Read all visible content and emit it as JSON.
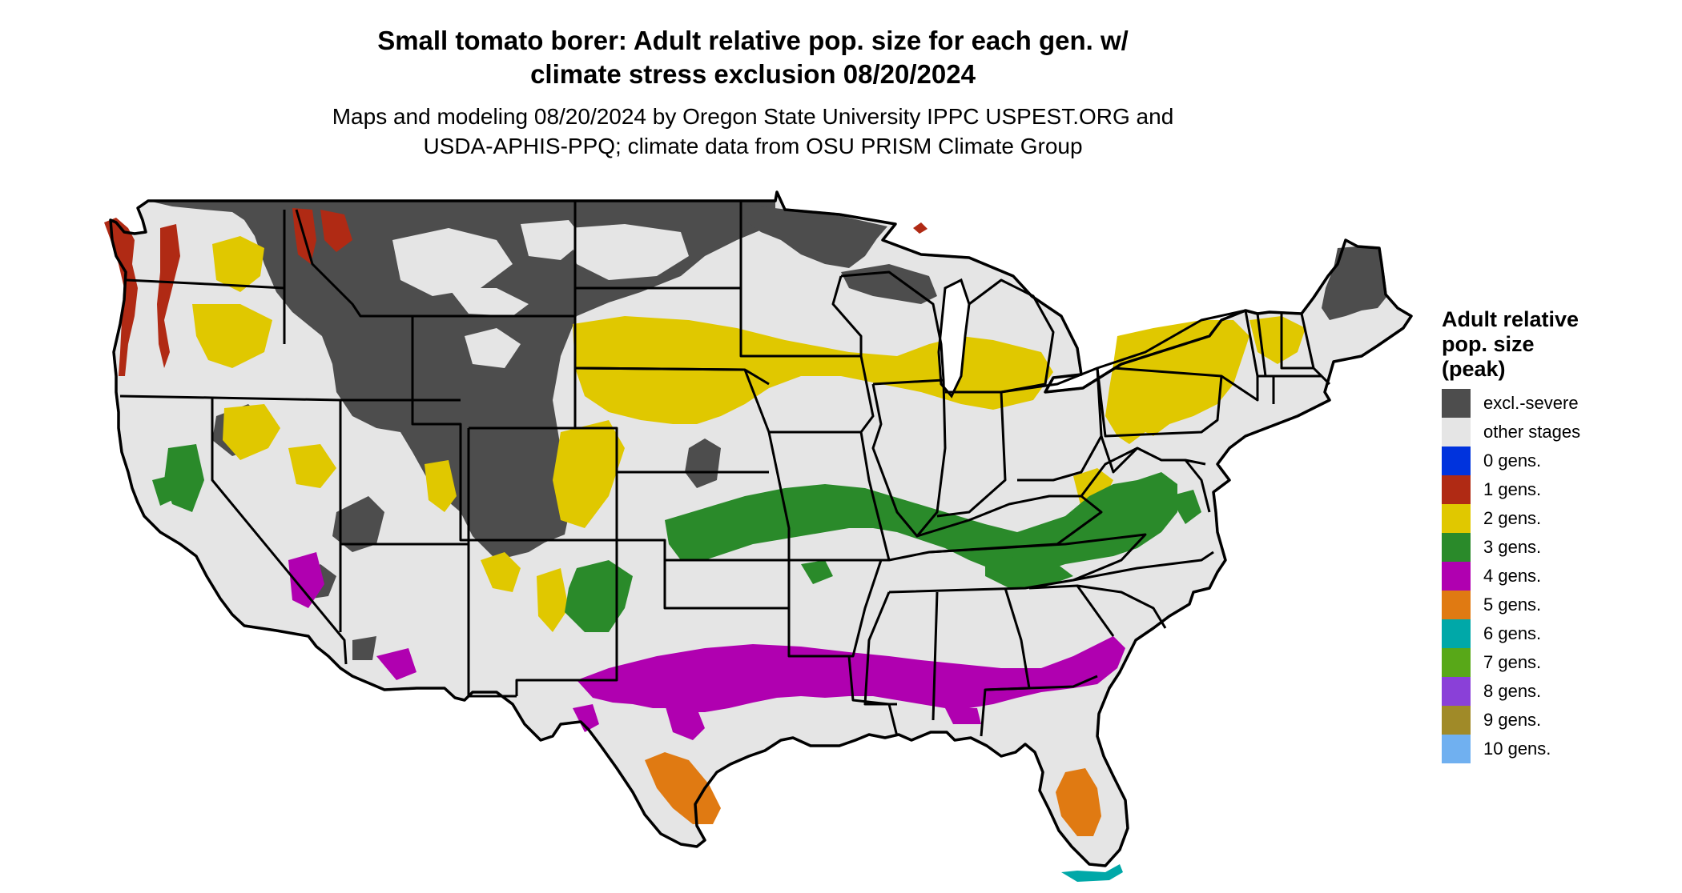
{
  "title": {
    "line1": "Small tomato borer: Adult relative pop. size for each gen. w/",
    "line2": "climate stress exclusion 08/20/2024"
  },
  "subtitle": {
    "line1": "Maps and modeling 08/20/2024 by Oregon State University IPPC USPEST.ORG and",
    "line2": "USDA-APHIS-PPQ; climate data from OSU PRISM Climate Group"
  },
  "legend": {
    "title_line1": "Adult relative",
    "title_line2": "pop. size",
    "title_line3": "(peak)",
    "items": [
      {
        "label": "excl.-severe",
        "color": "#4d4d4d"
      },
      {
        "label": "other stages",
        "color": "#e5e5e5"
      },
      {
        "label": "0 gens.",
        "color": "#0033dd"
      },
      {
        "label": "1 gens.",
        "color": "#b02a14"
      },
      {
        "label": "2 gens.",
        "color": "#e0c800"
      },
      {
        "label": "3 gens.",
        "color": "#2a8a2a"
      },
      {
        "label": "4 gens.",
        "color": "#b000b0"
      },
      {
        "label": "5 gens.",
        "color": "#e07a12"
      },
      {
        "label": "6 gens.",
        "color": "#00a8a8"
      },
      {
        "label": "7 gens.",
        "color": "#58a818"
      },
      {
        "label": "8 gens.",
        "color": "#8a40d8"
      },
      {
        "label": "9 gens.",
        "color": "#a08a28"
      },
      {
        "label": "10 gens.",
        "color": "#70b0f0"
      }
    ]
  },
  "map": {
    "region": "Contiguous United States",
    "land_color": "#e5e5e5",
    "border_color": "#000000"
  }
}
